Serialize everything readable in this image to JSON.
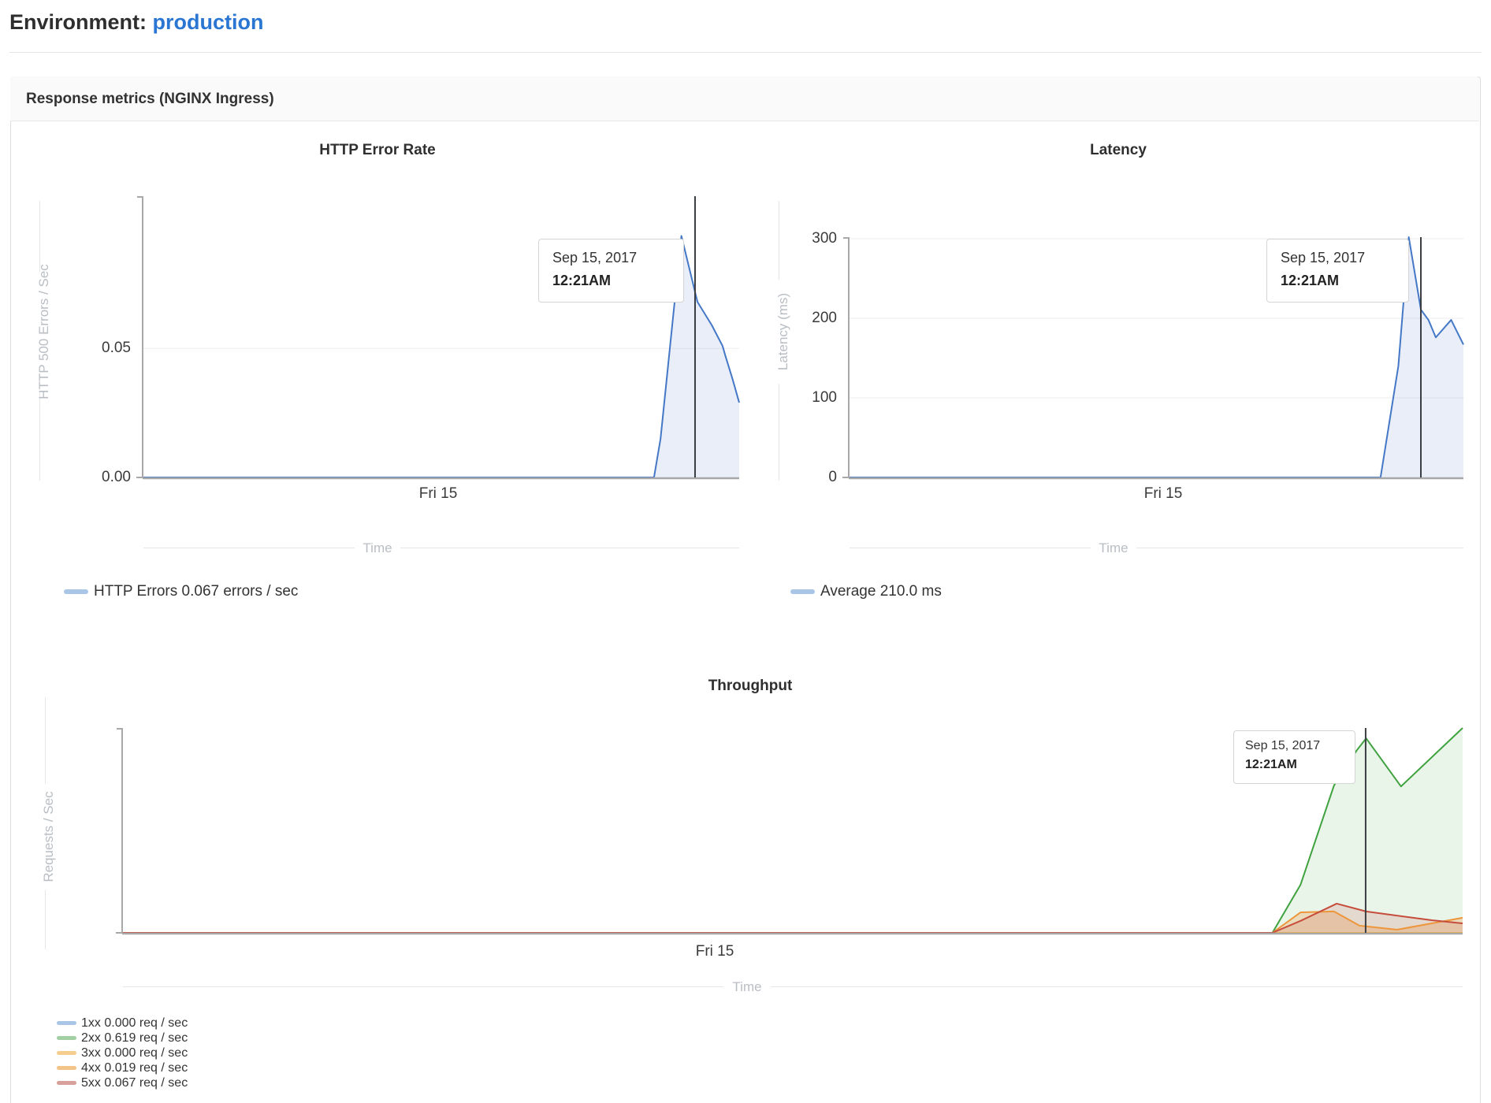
{
  "page": {
    "environment_label": "Environment:",
    "environment_value": "production"
  },
  "panel": {
    "title": "Response metrics (NGINX Ingress)"
  },
  "tooltip_shared": {
    "date": "Sep 15, 2017",
    "time": "12:21AM"
  },
  "chart_data": [
    {
      "type": "area",
      "title": "HTTP Error Rate",
      "ylabel": "HTTP 500 Errors / Sec",
      "xlabel": "Time",
      "xticks": [
        "Fri 15"
      ],
      "ylim": [
        0,
        0.109
      ],
      "grid": true,
      "yticks": [
        {
          "value": 0,
          "label": "0.00"
        },
        {
          "value": 0.05,
          "label": "0.05"
        }
      ],
      "tooltip": {
        "date": "Sep 15, 2017",
        "time": "12:21AM"
      },
      "cursor_x_frac": 0.9259,
      "series": [
        {
          "name": "HTTP Errors",
          "color": "#4478c6",
          "fill": "rgba(70,115,195,0.12)",
          "points": [
            [
              0,
              0
            ],
            [
              0.857,
              0
            ],
            [
              0.868,
              0.015
            ],
            [
              0.903,
              0.0936
            ],
            [
              0.93,
              0.068
            ],
            [
              0.954,
              0.059
            ],
            [
              0.972,
              0.051
            ],
            [
              0.977,
              0.047
            ],
            [
              0.989,
              0.038
            ],
            [
              1,
              0.029
            ]
          ]
        }
      ],
      "legend": [
        {
          "swatch": "#a9c6e6",
          "label": "HTTP Errors 0.067 errors / sec"
        }
      ]
    },
    {
      "type": "area",
      "title": "Latency",
      "ylabel": "Latency (ms)",
      "xlabel": "Time",
      "xticks": [
        "Fri 15"
      ],
      "ylim": [
        0,
        302
      ],
      "grid": true,
      "yticks": [
        {
          "value": 0,
          "label": "0"
        },
        {
          "value": 100,
          "label": "100"
        },
        {
          "value": 200,
          "label": "200"
        },
        {
          "value": 300,
          "label": "300"
        }
      ],
      "tooltip": {
        "date": "Sep 15, 2017",
        "time": "12:21AM"
      },
      "cursor_x_frac": 0.9307,
      "series": [
        {
          "name": "Average",
          "color": "#4478c6",
          "fill": "rgba(70,115,195,0.12)",
          "points": [
            [
              0,
              0
            ],
            [
              0.865,
              0
            ],
            [
              0.894,
              140
            ],
            [
              0.911,
              302
            ],
            [
              0.9307,
              211
            ],
            [
              0.943,
              198
            ],
            [
              0.955,
              176
            ],
            [
              0.98,
              198
            ],
            [
              1,
              167
            ]
          ]
        }
      ],
      "legend": [
        {
          "swatch": "#a9c6e6",
          "label": "Average 210.0 ms"
        }
      ]
    },
    {
      "type": "area",
      "title": "Throughput",
      "ylabel": "Requests / Sec",
      "xlabel": "Time",
      "xticks": [
        "Fri 15"
      ],
      "ylim": [
        0,
        0.652
      ],
      "grid": false,
      "yticks": [],
      "tooltip": {
        "date": "Sep 15, 2017",
        "time": "12:21AM"
      },
      "cursor_x_frac": 0.9276,
      "series": [
        {
          "name": "1xx",
          "color": "#4478c6",
          "fill": null,
          "points": [
            [
              0,
              0
            ],
            [
              1,
              0
            ]
          ]
        },
        {
          "name": "2xx",
          "color": "#3fa23f",
          "fill": "rgba(63,162,63,0.11)",
          "points": [
            [
              0,
              0
            ],
            [
              0.858,
              0
            ],
            [
              0.879,
              0.153
            ],
            [
              0.904,
              0.469
            ],
            [
              0.921,
              0.581
            ],
            [
              0.928,
              0.619
            ],
            [
              0.954,
              0.466
            ],
            [
              1,
              0.652
            ]
          ]
        },
        {
          "name": "3xx",
          "color": "#efaf4b",
          "fill": null,
          "points": [
            [
              0,
              0
            ],
            [
              1,
              0
            ]
          ]
        },
        {
          "name": "4xx",
          "color": "#ed963c",
          "fill": "rgba(237,150,60,0.28)",
          "points": [
            [
              0,
              0
            ],
            [
              0.858,
              0
            ],
            [
              0.879,
              0.065
            ],
            [
              0.904,
              0.068
            ],
            [
              0.923,
              0.023
            ],
            [
              0.951,
              0.01
            ],
            [
              1,
              0.048
            ]
          ]
        },
        {
          "name": "5xx",
          "color": "#c64d3c",
          "fill": "rgba(198,77,60,0.16)",
          "points": [
            [
              0,
              0
            ],
            [
              0.858,
              0
            ],
            [
              0.879,
              0.038
            ],
            [
              0.906,
              0.093
            ],
            [
              0.928,
              0.068
            ],
            [
              0.977,
              0.04
            ],
            [
              1,
              0.03
            ]
          ]
        }
      ],
      "legend": [
        {
          "swatch": "#a9c6e6",
          "label": "1xx 0.000 req / sec"
        },
        {
          "swatch": "#a3cfa4",
          "label": "2xx 0.619 req / sec"
        },
        {
          "swatch": "#f5cd8f",
          "label": "3xx 0.000 req / sec"
        },
        {
          "swatch": "#f3c488",
          "label": "4xx 0.019 req / sec"
        },
        {
          "swatch": "#d8a09a",
          "label": "5xx 0.067 req / sec"
        }
      ]
    }
  ]
}
